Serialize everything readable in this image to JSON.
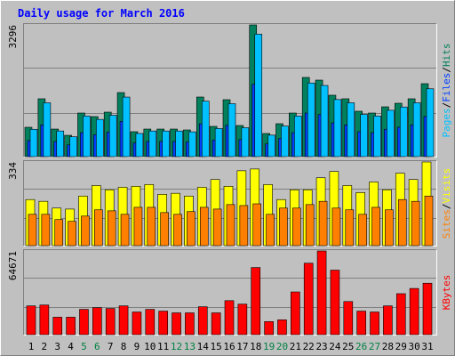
{
  "chart_data": {
    "type": "bar",
    "title": "Daily usage for March 2016",
    "categories": [
      "1",
      "2",
      "3",
      "4",
      "5",
      "6",
      "7",
      "8",
      "9",
      "10",
      "11",
      "12",
      "13",
      "14",
      "15",
      "16",
      "17",
      "18",
      "19",
      "20",
      "21",
      "22",
      "23",
      "24",
      "25",
      "26",
      "27",
      "28",
      "29",
      "30",
      "31"
    ],
    "category_colors": [
      "#000000",
      "#000000",
      "#000000",
      "#000000",
      "#008040",
      "#008040",
      "#000000",
      "#000000",
      "#000000",
      "#000000",
      "#000000",
      "#008040",
      "#008040",
      "#000000",
      "#000000",
      "#000000",
      "#000000",
      "#000000",
      "#008040",
      "#008040",
      "#000000",
      "#000000",
      "#000000",
      "#000000",
      "#000000",
      "#008040",
      "#008040",
      "#000000",
      "#000000",
      "#000000",
      "#000000"
    ],
    "legend_separator": "/",
    "panels": [
      {
        "ylim": [
          0,
          3296
        ],
        "yticks": [
          3296
        ],
        "series": [
          {
            "name": "Hits",
            "color": "#00805c",
            "values": [
              735,
              1448,
              690,
              534,
              1091,
              1002,
              1113,
              1603,
              624,
              690,
              690,
              690,
              668,
              1492,
              757,
              1425,
              779,
              3296,
              579,
              824,
              1091,
              1982,
              1915,
              1537,
              1448,
              1136,
              1091,
              1247,
              1336,
              1448,
              1826
            ]
          },
          {
            "name": "Files",
            "color": "#0040ff",
            "values": [
              404,
              796,
              380,
              294,
              600,
              551,
              612,
              882,
              343,
              380,
              380,
              380,
              367,
              821,
              416,
              784,
              428,
              1813,
              318,
              453,
              600,
              1090,
              1053,
              845,
              796,
              625,
              600,
              686,
              735,
              796,
              1004
            ]
          },
          {
            "name": "Pages",
            "color": "#00c0ff",
            "values": [
              684,
              1347,
              642,
              497,
              1015,
              932,
              1035,
              1491,
              580,
              642,
              642,
              642,
              621,
              1388,
              704,
              1325,
              724,
              3065,
              538,
              766,
              1015,
              1843,
              1781,
              1429,
              1347,
              1056,
              1015,
              1160,
              1242,
              1347,
              1698
            ]
          }
        ]
      },
      {
        "ylim": [
          0,
          334
        ],
        "yticks": [
          334
        ],
        "series": [
          {
            "name": "Visits",
            "color": "#ffff00",
            "values": [
              184,
              177,
              150,
              146,
              198,
              240,
              223,
              233,
              237,
              244,
              205,
              209,
              198,
              233,
              264,
              237,
              299,
              306,
              244,
              184,
              223,
              223,
              271,
              296,
              240,
              212,
              254,
              223,
              289,
              264,
              334
            ]
          },
          {
            "name": "Sites",
            "color": "#ff8000",
            "values": [
              125,
              125,
              104,
              97,
              118,
              143,
              139,
              125,
              153,
              153,
              132,
              125,
              136,
              153,
              146,
              164,
              160,
              167,
              125,
              150,
              150,
              164,
              177,
              150,
              143,
              125,
              153,
              143,
              184,
              177,
              198
            ]
          }
        ]
      },
      {
        "ylim": [
          0,
          64671
        ],
        "yticks": [
          64671
        ],
        "series": [
          {
            "name": "KBytes",
            "color": "#ff0000",
            "values": [
              22230,
              22904,
              13473,
              13473,
              19536,
              20883,
              20210,
              22230,
              17515,
              19536,
              18188,
              16841,
              16841,
              21557,
              16841,
              26273,
              23578,
              51872,
              10105,
              11452,
              33009,
              55240,
              64671,
              49851,
              25599,
              18188,
              17515,
              22230,
              31662,
              35704,
              39746
            ]
          }
        ]
      }
    ]
  }
}
